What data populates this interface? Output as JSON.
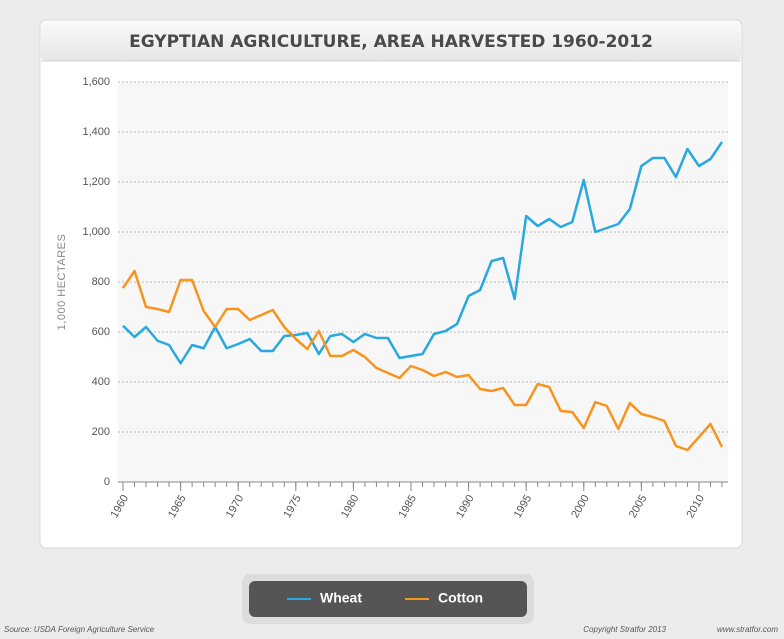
{
  "chart_data": {
    "type": "line",
    "title": "EGYPTIAN AGRICULTURE, AREA HARVESTED 1960-2012",
    "y_label": "1,000 HECTARES",
    "x": [
      1960,
      1961,
      1962,
      1963,
      1964,
      1965,
      1966,
      1967,
      1968,
      1969,
      1970,
      1971,
      1972,
      1973,
      1974,
      1975,
      1976,
      1977,
      1978,
      1979,
      1980,
      1981,
      1982,
      1983,
      1984,
      1985,
      1986,
      1987,
      1988,
      1989,
      1990,
      1991,
      1992,
      1993,
      1994,
      1995,
      1996,
      1997,
      1998,
      1999,
      2000,
      2001,
      2002,
      2003,
      2004,
      2005,
      2006,
      2007,
      2008,
      2009,
      2010,
      2011,
      2012
    ],
    "series": [
      {
        "name": "Wheat",
        "color": "#29a8e0",
        "values": [
          625,
          580,
          620,
          565,
          548,
          475,
          548,
          535,
          620,
          535,
          552,
          572,
          524,
          524,
          584,
          588,
          596,
          512,
          584,
          592,
          560,
          592,
          576,
          576,
          496,
          504,
          512,
          592,
          604,
          632,
          744,
          768,
          884,
          896,
          732,
          1064,
          1024,
          1052,
          1020,
          1040,
          1208,
          1000,
          1016,
          1032,
          1092,
          1264,
          1296,
          1296,
          1220,
          1332,
          1264,
          1292,
          1360
        ]
      },
      {
        "name": "Cotton",
        "color": "#f7941d",
        "values": [
          776,
          844,
          700,
          692,
          680,
          808,
          808,
          684,
          620,
          692,
          692,
          648,
          668,
          688,
          620,
          572,
          532,
          604,
          504,
          504,
          528,
          500,
          456,
          436,
          416,
          464,
          448,
          424,
          440,
          420,
          428,
          372,
          364,
          376,
          308,
          308,
          392,
          380,
          284,
          280,
          216,
          320,
          304,
          212,
          316,
          272,
          260,
          244,
          144,
          128,
          180,
          232,
          140
        ]
      }
    ],
    "xlim": [
      1960,
      2012
    ],
    "xticks": [
      1960,
      1965,
      1970,
      1975,
      1980,
      1985,
      1990,
      1995,
      2000,
      2005,
      2010
    ],
    "ylim": [
      0,
      1600
    ],
    "yticks": [
      0,
      200,
      400,
      600,
      800,
      {
        "value": 1000,
        "label": "1,000"
      },
      {
        "value": 1200,
        "label": "1,200"
      },
      {
        "value": 1400,
        "label": "1,400"
      },
      {
        "value": 1600,
        "label": "1,600"
      }
    ],
    "grid": true
  },
  "footer": {
    "source": "Source: USDA Foreign Agriculture Service",
    "copyright": "Copyright Stratfor 2013",
    "website": "www.stratfor.com"
  }
}
